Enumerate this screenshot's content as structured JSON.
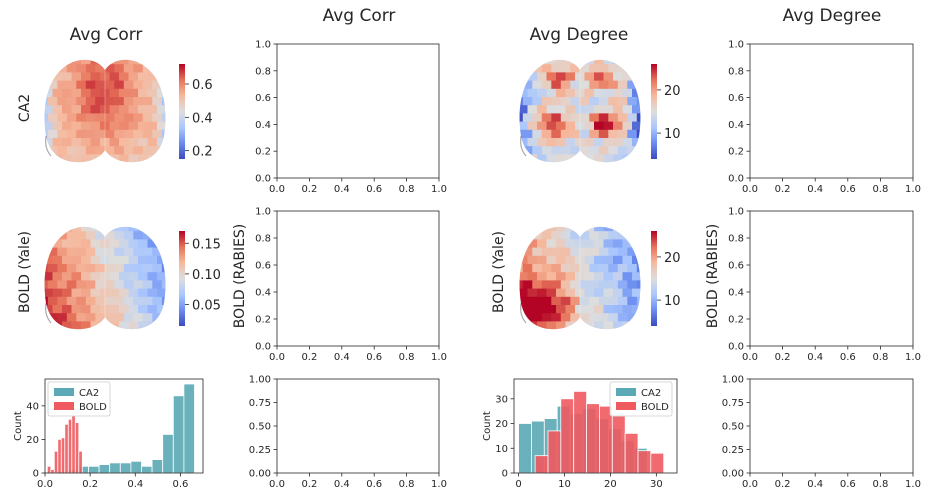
{
  "column_titles": {
    "col1": "Avg Corr",
    "col2": "Avg Corr",
    "col3": "Avg Degree",
    "col4": "Avg Degree"
  },
  "row_labels": {
    "ca2": "CA2",
    "bold_yale": "BOLD (Yale)",
    "bold_rabies": "BOLD (RABIES)"
  },
  "colors": {
    "ca2": "#5aa9b5",
    "bold": "#ef5a5f",
    "cmap": [
      "#3b4cc0",
      "#6b8df0",
      "#aac7fd",
      "#dddddd",
      "#f6b89c",
      "#e7745b",
      "#b40426"
    ]
  },
  "chart_data": [
    {
      "type": "heatmap",
      "name": "Avg Corr - CA2",
      "colorbar": {
        "ticks": [
          "0.2",
          "0.4",
          "0.6"
        ],
        "vmin": 0.15,
        "vmax": 0.72,
        "tick_values": [
          0.2,
          0.4,
          0.6
        ]
      },
      "pattern": "ca2_corr"
    },
    {
      "type": "heatmap",
      "name": "Avg Degree - CA2",
      "colorbar": {
        "ticks": [
          "10",
          "20"
        ],
        "vmin": 4,
        "vmax": 26,
        "tick_values": [
          10,
          20
        ]
      },
      "pattern": "ca2_deg"
    },
    {
      "type": "heatmap",
      "name": "Avg Corr - BOLD (Yale)",
      "colorbar": {
        "ticks": [
          "0.05",
          "0.10",
          "0.15"
        ],
        "vmin": 0.015,
        "vmax": 0.17,
        "tick_values": [
          0.05,
          0.1,
          0.15
        ]
      },
      "pattern": "bold_corr"
    },
    {
      "type": "heatmap",
      "name": "Avg Degree - BOLD (Yale)",
      "colorbar": {
        "ticks": [
          "10",
          "20"
        ],
        "vmin": 4,
        "vmax": 26,
        "tick_values": [
          10,
          20
        ]
      },
      "pattern": "bold_deg"
    },
    {
      "type": "bar",
      "name": "Avg Corr histogram",
      "ylabel": "Count",
      "xlim": [
        0,
        0.7
      ],
      "ylim": [
        0,
        56
      ],
      "xticks": [
        "0.0",
        "0.2",
        "0.4",
        "0.6"
      ],
      "yticks": [
        "0",
        "20",
        "40"
      ],
      "legend": {
        "placement": "top-left",
        "entries": [
          "CA2",
          "BOLD"
        ]
      },
      "series": [
        {
          "name": "CA2",
          "bin_width": 0.047,
          "x": [
            0.028,
            0.075,
            0.122,
            0.169,
            0.216,
            0.263,
            0.31,
            0.357,
            0.404,
            0.451,
            0.498,
            0.545,
            0.592,
            0.639
          ],
          "values": [
            0,
            1,
            2,
            4,
            4,
            5,
            6,
            6,
            7,
            4,
            8,
            23,
            46,
            53
          ]
        },
        {
          "name": "BOLD",
          "bin_width": 0.0155,
          "x": [
            0.018,
            0.0335,
            0.049,
            0.0645,
            0.08,
            0.0955,
            0.111,
            0.1265,
            0.142,
            0.1575
          ],
          "values": [
            4,
            2,
            13,
            20,
            21,
            29,
            32,
            34,
            30,
            13
          ]
        }
      ]
    },
    {
      "type": "bar",
      "name": "Avg Degree histogram",
      "ylabel": "Count",
      "xlim": [
        -1,
        34.5
      ],
      "ylim": [
        0,
        38
      ],
      "xticks": [
        "0",
        "10",
        "20",
        "30"
      ],
      "yticks": [
        "0",
        "10",
        "20",
        "30"
      ],
      "legend": {
        "placement": "top-right",
        "entries": [
          "CA2",
          "BOLD"
        ]
      },
      "series": [
        {
          "name": "CA2",
          "bin_width": 2.8,
          "x": [
            1.4,
            4.2,
            7.0,
            9.8,
            12.6,
            15.4,
            18.2,
            21.0,
            23.8,
            26.6
          ],
          "values": [
            20,
            21,
            22,
            27,
            24,
            26,
            22,
            18,
            13,
            10
          ]
        },
        {
          "name": "BOLD",
          "bin_width": 2.8,
          "x": [
            5.0,
            7.8,
            10.6,
            13.4,
            16.2,
            19.0,
            21.8,
            24.6,
            27.4,
            30.2
          ],
          "values": [
            7,
            17,
            30,
            33,
            28,
            27,
            23,
            16,
            9,
            8
          ]
        }
      ]
    },
    {
      "type": "line",
      "name": "empty axes",
      "xticks": [
        "0.0",
        "0.2",
        "0.4",
        "0.6",
        "0.8",
        "1.0"
      ],
      "yticks": [
        "0.0",
        "0.2",
        "0.4",
        "0.6",
        "0.8",
        "1.0"
      ],
      "yticks_short": [
        "0.00",
        "0.25",
        "0.50",
        "0.75",
        "1.00"
      ],
      "xlim": [
        0,
        1
      ],
      "ylim": [
        0,
        1
      ]
    }
  ]
}
